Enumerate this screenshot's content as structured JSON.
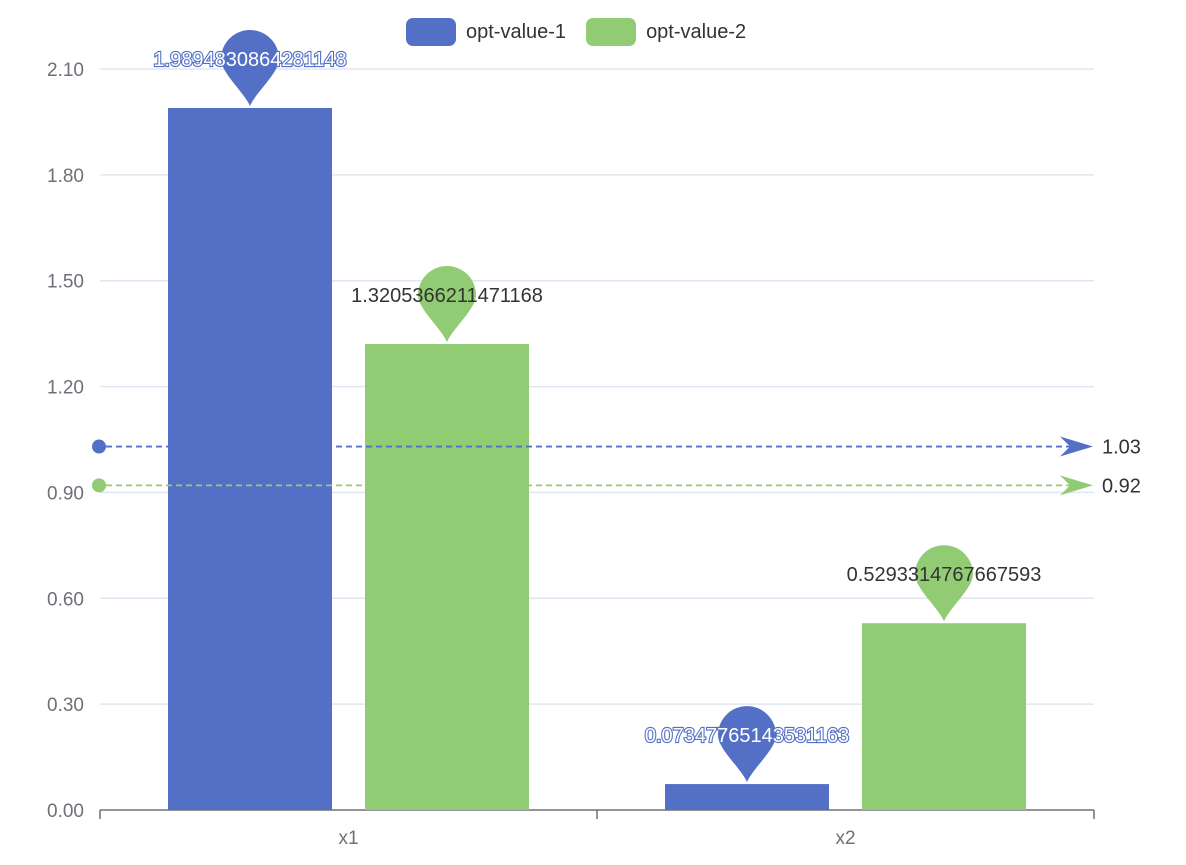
{
  "chart_data": {
    "type": "bar",
    "categories": [
      "x1",
      "x2"
    ],
    "series": [
      {
        "name": "opt-value-1",
        "color": "#5470c6",
        "values": [
          1.9894830864281148,
          0.07347765143531163
        ],
        "max_label": "1.9894830864281148",
        "min_label": "0.07347765143531163",
        "average": 1.03,
        "average_label": "1.03"
      },
      {
        "name": "opt-value-2",
        "color": "#91cc75",
        "values": [
          1.3205366211471168,
          0.5293314767667593
        ],
        "max_label": "1.3205366211471168",
        "min_label": "0.5293314767667593",
        "average": 0.92,
        "average_label": "0.92"
      }
    ],
    "yticks": [
      "0.00",
      "0.30",
      "0.60",
      "0.90",
      "1.20",
      "1.50",
      "1.80",
      "2.10"
    ],
    "ylim": [
      0,
      2.1
    ],
    "grid": true,
    "legend_position": "top-center"
  }
}
